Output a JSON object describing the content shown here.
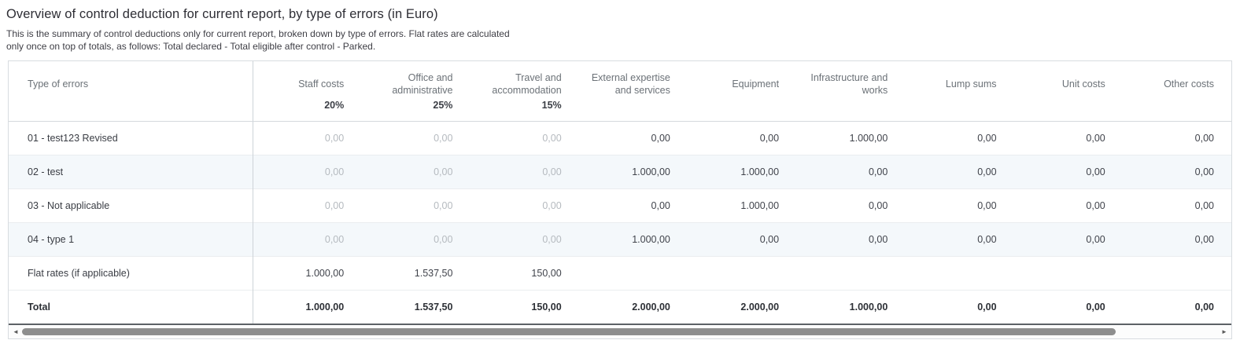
{
  "page": {
    "title": "Overview of control deduction for current report, by type of errors (in Euro)",
    "subtitle_line1": "This is the summary of control deductions only for current report, broken down by type of errors. Flat rates are calculated",
    "subtitle_line2": "only once on top of totals, as follows: Total declared - Total eligible after control - Parked."
  },
  "colors": {
    "alt_row_bg": "#f4f8fb",
    "muted_value_text": "#b5babf",
    "value_text": "#40434b",
    "header_text": "#6b7177",
    "table_border": "#d8dce0",
    "column_divider": "#cdd3d8",
    "total_bottom_border": "#5d6166",
    "scrollbar_thumb": "#8e8e8e"
  },
  "table": {
    "columns": [
      {
        "label": "Type of errors",
        "rate": ""
      },
      {
        "label": "Staff costs",
        "rate": "20%"
      },
      {
        "label": "Office and administrative",
        "rate": "25%"
      },
      {
        "label": "Travel and accommodation",
        "rate": "15%"
      },
      {
        "label": "External expertise and services",
        "rate": ""
      },
      {
        "label": "Equipment",
        "rate": ""
      },
      {
        "label": "Infrastructure and works",
        "rate": ""
      },
      {
        "label": "Lump sums",
        "rate": ""
      },
      {
        "label": "Unit costs",
        "rate": ""
      },
      {
        "label": "Other costs",
        "rate": ""
      }
    ],
    "flat_rate_column_count": 3,
    "rows": [
      {
        "kind": "error",
        "label": "01 - test123 Revised",
        "values": [
          "0,00",
          "0,00",
          "0,00",
          "0,00",
          "0,00",
          "1.000,00",
          "0,00",
          "0,00",
          "0,00"
        ]
      },
      {
        "kind": "error",
        "label": "02 - test",
        "values": [
          "0,00",
          "0,00",
          "0,00",
          "1.000,00",
          "1.000,00",
          "0,00",
          "0,00",
          "0,00",
          "0,00"
        ]
      },
      {
        "kind": "error",
        "label": "03 - Not applicable",
        "values": [
          "0,00",
          "0,00",
          "0,00",
          "0,00",
          "1.000,00",
          "0,00",
          "0,00",
          "0,00",
          "0,00"
        ]
      },
      {
        "kind": "error",
        "label": "04 - type 1",
        "values": [
          "0,00",
          "0,00",
          "0,00",
          "1.000,00",
          "0,00",
          "0,00",
          "0,00",
          "0,00",
          "0,00"
        ]
      },
      {
        "kind": "flat",
        "label": "Flat rates (if applicable)",
        "values": [
          "1.000,00",
          "1.537,50",
          "150,00",
          "",
          "",
          "",
          "",
          "",
          ""
        ]
      },
      {
        "kind": "total",
        "label": "Total",
        "values": [
          "1.000,00",
          "1.537,50",
          "150,00",
          "2.000,00",
          "2.000,00",
          "1.000,00",
          "0,00",
          "0,00",
          "0,00"
        ]
      }
    ]
  },
  "scrollbar": {
    "left_arrow": "◄",
    "right_arrow": "►"
  }
}
